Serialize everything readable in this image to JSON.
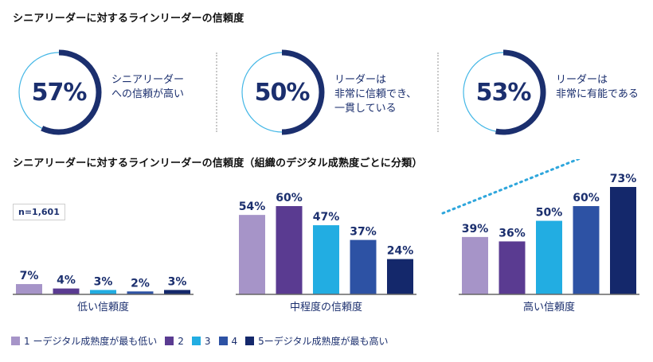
{
  "title_top": "シニアリーダーに対するラインリーダーの信頼度",
  "kpis": [
    {
      "value": "57%",
      "fraction": 0.57,
      "text": "シニアリーダー\nへの信頼が高い"
    },
    {
      "value": "50%",
      "fraction": 0.5,
      "text": "リーダーは\n非常に信頼でき、\n一貫している"
    },
    {
      "value": "53%",
      "fraction": 0.53,
      "text": "リーダーは\n非常に有能である"
    }
  ],
  "colors": {
    "ring": "#1b2f6e",
    "ring_track": "#44b7e6",
    "series": [
      "#a694c8",
      "#5a3b91",
      "#22ade2",
      "#2d52a4",
      "#14286b"
    ],
    "axis": "#666666",
    "label": "#1b2f6e",
    "arrow": "#2ea6dc"
  },
  "n_label": "n=1,601",
  "chart_data": {
    "type": "bar",
    "title": "シニアリーダーに対するラインリーダーの信頼度（組織のデジタル成熟度ごとに分類）",
    "categories": [
      "低い信頼度",
      "中程度の信頼度",
      "高い信頼度"
    ],
    "series": [
      {
        "name": "1 ーデジタル成熟度が最も低い",
        "values": [
          7,
          54,
          39
        ],
        "labels": [
          "7%",
          "54%",
          "39%"
        ]
      },
      {
        "name": "2",
        "values": [
          4,
          60,
          36
        ],
        "labels": [
          "4%",
          "60%",
          "36%"
        ]
      },
      {
        "name": "3",
        "values": [
          3,
          47,
          50
        ],
        "labels": [
          "3%",
          "47%",
          "50%"
        ]
      },
      {
        "name": "4",
        "values": [
          2,
          37,
          60
        ],
        "labels": [
          "2%",
          "37%",
          "60%"
        ]
      },
      {
        "name": "5ーデジタル成熟度が最も高い",
        "values": [
          3,
          24,
          73
        ],
        "labels": [
          "3%",
          "24%",
          "73%"
        ]
      }
    ],
    "ylim": [
      0,
      80
    ],
    "xlabel": "",
    "ylabel": "",
    "legend": "bottom-left"
  }
}
